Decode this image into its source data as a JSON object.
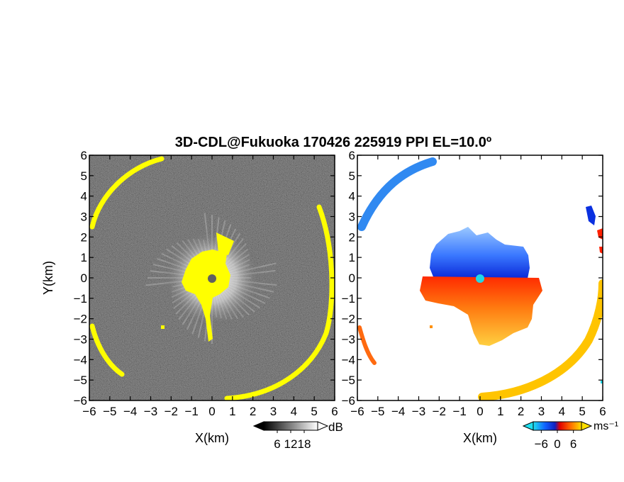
{
  "chart_data": {
    "title": "3D-CDL@Fukuoka 170426 225919 PPI EL=10.0º",
    "panels": [
      {
        "type": "heatmap",
        "quantity": "reflectivity",
        "xlabel": "X(km)",
        "ylabel": "Y(km)",
        "xlim": [
          -6,
          6
        ],
        "ylim": [
          -6,
          6
        ],
        "xticks": [
          -6,
          -5,
          -4,
          -3,
          -2,
          -1,
          0,
          1,
          2,
          3,
          4,
          5,
          6
        ],
        "yticks": [
          -6,
          -5,
          -4,
          -3,
          -2,
          -1,
          0,
          1,
          2,
          3,
          4,
          5,
          6
        ],
        "colorbar": {
          "unit": "dB",
          "ticks": [
            6,
            12,
            18
          ],
          "range": [
            0,
            24
          ],
          "extend": "both"
        },
        "features": {
          "ring_radius_km": 5.9,
          "central_echo_radius_km": 2.4,
          "site": [
            0,
            0
          ]
        }
      },
      {
        "type": "heatmap",
        "quantity": "doppler_velocity",
        "xlabel": "X(km)",
        "ylabel": "",
        "xlim": [
          -6,
          6
        ],
        "ylim": [
          -6,
          6
        ],
        "xticks": [
          -6,
          -5,
          -4,
          -3,
          -2,
          -1,
          0,
          1,
          2,
          3,
          4,
          5,
          6
        ],
        "yticks": [
          -6,
          -5,
          -4,
          -3,
          -2,
          -1,
          0,
          1,
          2,
          3,
          4,
          5,
          6
        ],
        "colorbar": {
          "unit": "ms⁻¹",
          "ticks": [
            -6,
            0,
            6
          ],
          "range": [
            -9,
            9
          ],
          "extend": "both"
        },
        "features": {
          "ring_radius_km": 5.9,
          "central_echo_radius_km": 2.4,
          "site": [
            0,
            0
          ]
        }
      }
    ]
  },
  "colors": {
    "clutter": "#ffff00",
    "site_marker_left": "#606060",
    "site_marker_right": "#20d8e8",
    "velocity_negative": "#1040e0",
    "velocity_positive": "#ff3a00",
    "velocity_far_positive": "#ffb000"
  }
}
